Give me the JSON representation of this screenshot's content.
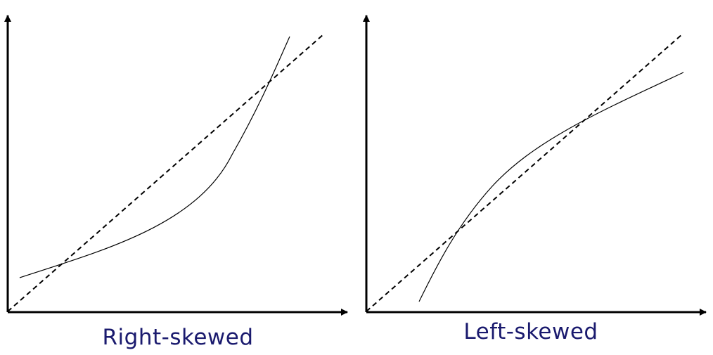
{
  "panels": [
    {
      "caption": "Right-skewed",
      "caption_color": "#1a1a6e",
      "curve_shape": "convex",
      "reference_line": "dashed-diagonal"
    },
    {
      "caption": "Left-skewed",
      "caption_color": "#1a1a6e",
      "curve_shape": "concave",
      "reference_line": "dashed-diagonal"
    }
  ],
  "colors": {
    "axis": "#000000",
    "curve": "#000000",
    "reference": "#000000",
    "background": "#ffffff"
  }
}
